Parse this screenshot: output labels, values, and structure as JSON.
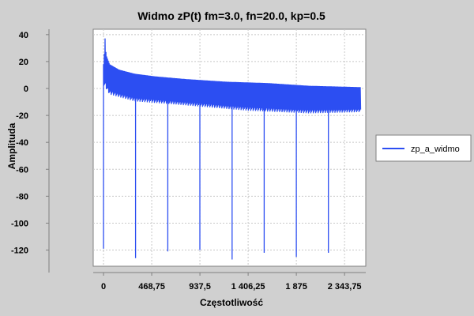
{
  "chart_data": {
    "type": "line",
    "title": "Widmo zP(t) fm=3.0, fn=20.0, kp=0.5",
    "xlabel": "Częstotliwość",
    "ylabel": "Amplituda",
    "xlim": [
      -100,
      2550
    ],
    "ylim": [
      -132,
      44
    ],
    "yticks": [
      40,
      20,
      0,
      -20,
      -40,
      -60,
      -80,
      -100,
      -120
    ],
    "ytick_labels": [
      "40",
      "20",
      "0",
      "-20",
      "-40",
      "-60",
      "-80",
      "-100",
      "-120"
    ],
    "xticks": [
      0,
      468.75,
      937.5,
      1406.25,
      1875,
      2343.75
    ],
    "xtick_labels": [
      "0",
      "468,75",
      "937,5",
      "1 406,25",
      "1 875",
      "2 343,75"
    ],
    "grid": true,
    "legend_position": "right",
    "colors": {
      "series": "#2c4ef2",
      "plot_background": "#ffffff",
      "grid": "#c8c8c8",
      "page_background": "#d0d0d0"
    },
    "series": [
      {
        "name": "zp_a_widmo",
        "envelope_upper": [
          [
            0,
            18
          ],
          [
            10,
            28
          ],
          [
            15,
            38
          ],
          [
            25,
            25
          ],
          [
            60,
            18
          ],
          [
            150,
            14
          ],
          [
            300,
            11
          ],
          [
            500,
            9
          ],
          [
            800,
            7
          ],
          [
            1200,
            5
          ],
          [
            1600,
            4
          ],
          [
            2000,
            2
          ],
          [
            2500,
            1
          ]
        ],
        "envelope_lower": [
          [
            0,
            2
          ],
          [
            60,
            -5
          ],
          [
            300,
            -10
          ],
          [
            800,
            -13
          ],
          [
            1400,
            -17
          ],
          [
            2000,
            -19
          ],
          [
            2500,
            -18
          ]
        ],
        "deep_dips": [
          [
            0,
            -119
          ],
          [
            312,
            -126
          ],
          [
            625,
            -121
          ],
          [
            937,
            -120
          ],
          [
            1250,
            -127
          ],
          [
            1562,
            -122
          ],
          [
            1875,
            -125
          ],
          [
            2187,
            -122
          ]
        ]
      }
    ]
  }
}
